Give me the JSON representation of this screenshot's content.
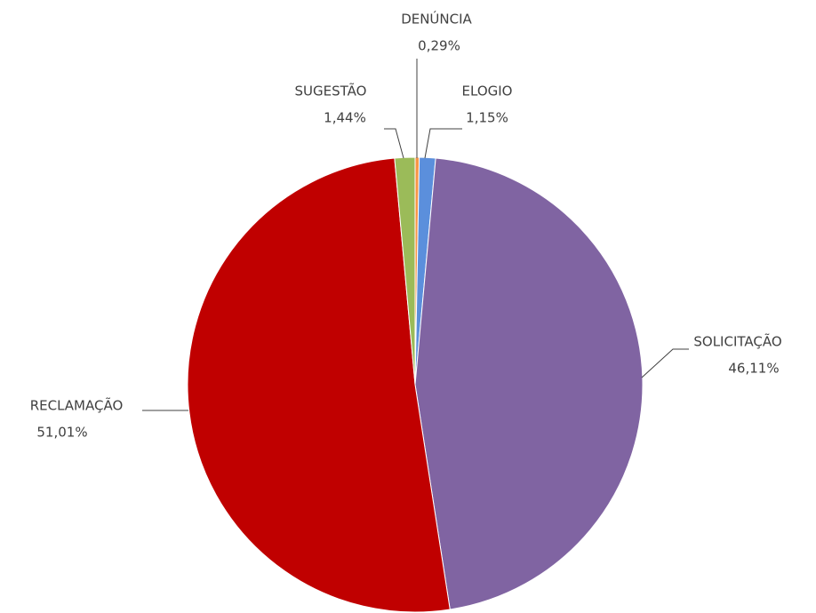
{
  "chart_data": {
    "type": "pie",
    "categories": [
      "DENÚNCIA",
      "ELOGIO",
      "SOLICITAÇÃO",
      "RECLAMAÇÃO",
      "SUGESTÃO"
    ],
    "values": [
      0.29,
      1.15,
      46.11,
      51.01,
      1.44
    ],
    "value_labels": [
      "0,29%",
      "1,15%",
      "46,11%",
      "51,01%",
      "1,44%"
    ],
    "colors": [
      "#f79646",
      "#5b8fdc",
      "#8064a2",
      "#c00000",
      "#9bbb59"
    ]
  }
}
